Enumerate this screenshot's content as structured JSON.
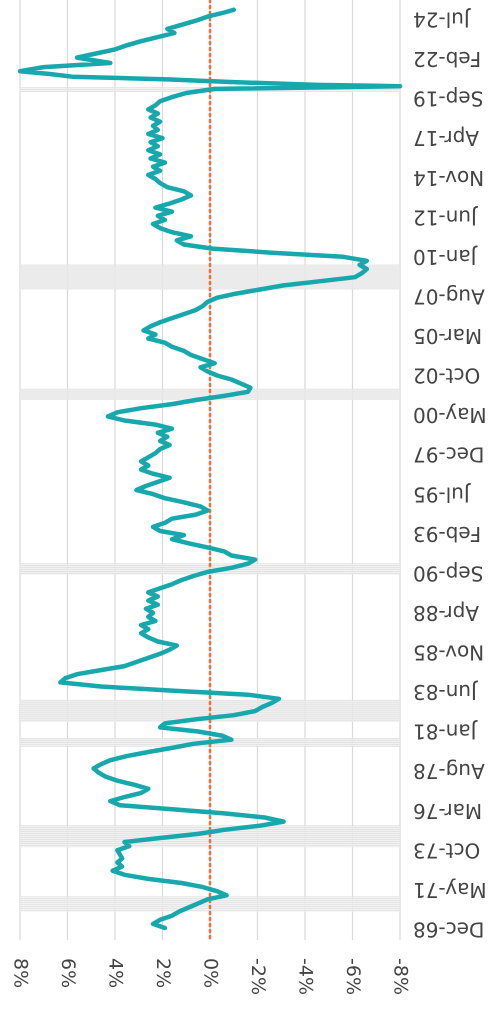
{
  "chart_data": {
    "type": "line",
    "orientation": "rotated-90-clockwise",
    "title": "",
    "xlabel": "",
    "ylabel": "",
    "x_tick_labels": [
      "Dec-68",
      "May-71",
      "Oct-73",
      "Mar-76",
      "Aug-78",
      "Jan-81",
      "Jun-83",
      "Nov-85",
      "Apr-88",
      "Sep-90",
      "Feb-93",
      "Jul-95",
      "Dec-97",
      "May-00",
      "Oct-02",
      "Mar-05",
      "Aug-07",
      "Jan-10",
      "Jun-12",
      "Nov-14",
      "Apr-17",
      "Sep-19",
      "Feb-22",
      "Jul-24"
    ],
    "y_tick_labels": [
      "8%",
      "6%",
      "4%",
      "2%",
      "0%",
      "-2%",
      "-4%",
      "-6%",
      "-8%"
    ],
    "ylim": [
      -8,
      8
    ],
    "grid": true,
    "reference_line": {
      "value": 0,
      "style": "dotted",
      "color": "#e8743b"
    },
    "series": [
      {
        "color": "#17a8ad",
        "points": [
          [
            "1968-12",
            1.9
          ],
          [
            "1969-03",
            2.4
          ],
          [
            "1969-06",
            2.1
          ],
          [
            "1969-09",
            1.6
          ],
          [
            "1969-12",
            1.3
          ],
          [
            "1970-03",
            0.9
          ],
          [
            "1970-06",
            0.5
          ],
          [
            "1970-09",
            0.1
          ],
          [
            "1970-12",
            -0.7
          ],
          [
            "1971-03",
            -0.3
          ],
          [
            "1971-06",
            0.3
          ],
          [
            "1971-09",
            1.2
          ],
          [
            "1971-12",
            2.6
          ],
          [
            "1972-03",
            3.6
          ],
          [
            "1972-06",
            4.1
          ],
          [
            "1972-09",
            3.7
          ],
          [
            "1972-12",
            3.9
          ],
          [
            "1973-03",
            3.7
          ],
          [
            "1973-06",
            3.8
          ],
          [
            "1973-09",
            3.9
          ],
          [
            "1973-12",
            3.4
          ],
          [
            "1974-03",
            3.6
          ],
          [
            "1974-06",
            2.1
          ],
          [
            "1974-09",
            0.5
          ],
          [
            "1974-12",
            -0.6
          ],
          [
            "1975-03",
            -2.1
          ],
          [
            "1975-06",
            -3.1
          ],
          [
            "1975-09",
            -2.3
          ],
          [
            "1975-12",
            -0.6
          ],
          [
            "1976-03",
            1.6
          ],
          [
            "1976-06",
            3.8
          ],
          [
            "1976-09",
            4.2
          ],
          [
            "1976-12",
            3.6
          ],
          [
            "1977-03",
            2.9
          ],
          [
            "1977-06",
            2.6
          ],
          [
            "1977-09",
            3.2
          ],
          [
            "1977-12",
            3.9
          ],
          [
            "1978-03",
            4.4
          ],
          [
            "1978-06",
            4.7
          ],
          [
            "1978-09",
            4.9
          ],
          [
            "1978-12",
            4.6
          ],
          [
            "1979-03",
            4.2
          ],
          [
            "1979-06",
            3.5
          ],
          [
            "1979-09",
            2.6
          ],
          [
            "1979-12",
            1.6
          ],
          [
            "1980-03",
            0.7
          ],
          [
            "1980-06",
            -0.9
          ],
          [
            "1980-09",
            -0.5
          ],
          [
            "1980-12",
            0.5
          ],
          [
            "1981-03",
            2.1
          ],
          [
            "1981-06",
            1.9
          ],
          [
            "1981-09",
            0.6
          ],
          [
            "1981-12",
            -1.0
          ],
          [
            "1982-03",
            -1.9
          ],
          [
            "1982-06",
            -2.2
          ],
          [
            "1982-09",
            -2.6
          ],
          [
            "1982-12",
            -2.9
          ],
          [
            "1983-03",
            -1.6
          ],
          [
            "1983-06",
            1.6
          ],
          [
            "1983-09",
            4.6
          ],
          [
            "1983-12",
            6.3
          ],
          [
            "1984-03",
            6.1
          ],
          [
            "1984-06",
            5.6
          ],
          [
            "1984-09",
            4.6
          ],
          [
            "1984-12",
            3.6
          ],
          [
            "1985-03",
            3.1
          ],
          [
            "1985-06",
            2.6
          ],
          [
            "1985-09",
            2.1
          ],
          [
            "1985-12",
            1.7
          ],
          [
            "1986-03",
            1.4
          ],
          [
            "1986-06",
            2.2
          ],
          [
            "1986-09",
            2.6
          ],
          [
            "1986-12",
            2.9
          ],
          [
            "1987-03",
            2.6
          ],
          [
            "1987-06",
            2.9
          ],
          [
            "1987-09",
            2.3
          ],
          [
            "1987-12",
            2.6
          ],
          [
            "1988-03",
            2.4
          ],
          [
            "1988-06",
            2.7
          ],
          [
            "1988-09",
            2.2
          ],
          [
            "1988-12",
            2.6
          ],
          [
            "1989-03",
            2.2
          ],
          [
            "1989-06",
            2.6
          ],
          [
            "1989-09",
            2.1
          ],
          [
            "1989-12",
            1.6
          ],
          [
            "1990-03",
            1.2
          ],
          [
            "1990-06",
            0.7
          ],
          [
            "1990-09",
            0.1
          ],
          [
            "1990-12",
            -0.9
          ],
          [
            "1991-03",
            -1.6
          ],
          [
            "1991-06",
            -1.9
          ],
          [
            "1991-09",
            -0.9
          ],
          [
            "1991-12",
            -0.6
          ],
          [
            "1992-03",
            0.1
          ],
          [
            "1992-06",
            0.9
          ],
          [
            "1992-09",
            1.6
          ],
          [
            "1992-12",
            1.1
          ],
          [
            "1993-03",
            2.1
          ],
          [
            "1993-06",
            2.4
          ],
          [
            "1993-09",
            1.9
          ],
          [
            "1993-12",
            1.6
          ],
          [
            "1994-03",
            0.6
          ],
          [
            "1994-06",
            0.1
          ],
          [
            "1994-09",
            0.4
          ],
          [
            "1994-12",
            1.1
          ],
          [
            "1995-03",
            1.9
          ],
          [
            "1995-06",
            2.4
          ],
          [
            "1995-09",
            3.1
          ],
          [
            "1995-12",
            2.7
          ],
          [
            "1996-03",
            2.2
          ],
          [
            "1996-06",
            1.7
          ],
          [
            "1996-09",
            2.4
          ],
          [
            "1996-12",
            2.9
          ],
          [
            "1997-03",
            2.6
          ],
          [
            "1997-06",
            2.9
          ],
          [
            "1997-09",
            2.6
          ],
          [
            "1997-12",
            2.3
          ],
          [
            "1998-03",
            2.1
          ],
          [
            "1998-06",
            1.7
          ],
          [
            "1998-09",
            2.1
          ],
          [
            "1998-12",
            1.8
          ],
          [
            "1999-03",
            2.2
          ],
          [
            "1999-06",
            1.6
          ],
          [
            "1999-09",
            2.3
          ],
          [
            "1999-12",
            3.6
          ],
          [
            "2000-03",
            4.3
          ],
          [
            "2000-06",
            3.9
          ],
          [
            "2000-09",
            2.9
          ],
          [
            "2000-12",
            1.6
          ],
          [
            "2001-03",
            0.6
          ],
          [
            "2001-06",
            -0.6
          ],
          [
            "2001-09",
            -1.6
          ],
          [
            "2001-12",
            -1.7
          ],
          [
            "2002-03",
            -1.3
          ],
          [
            "2002-06",
            -0.9
          ],
          [
            "2002-09",
            -0.3
          ],
          [
            "2002-12",
            0.1
          ],
          [
            "2003-03",
            0.4
          ],
          [
            "2003-06",
            -0.2
          ],
          [
            "2003-09",
            0.3
          ],
          [
            "2003-12",
            0.8
          ],
          [
            "2004-03",
            1.1
          ],
          [
            "2004-06",
            1.6
          ],
          [
            "2004-09",
            1.9
          ],
          [
            "2004-12",
            2.6
          ],
          [
            "2005-03",
            2.3
          ],
          [
            "2005-06",
            2.8
          ],
          [
            "2005-09",
            2.5
          ],
          [
            "2005-12",
            2.1
          ],
          [
            "2006-03",
            1.6
          ],
          [
            "2006-06",
            1.1
          ],
          [
            "2006-09",
            0.6
          ],
          [
            "2006-12",
            0.3
          ],
          [
            "2007-03",
            0.1
          ],
          [
            "2007-06",
            -0.3
          ],
          [
            "2007-09",
            -1.1
          ],
          [
            "2007-12",
            -2.1
          ],
          [
            "2008-03",
            -3.1
          ],
          [
            "2008-06",
            -4.6
          ],
          [
            "2008-09",
            -6.1
          ],
          [
            "2008-12",
            -6.4
          ],
          [
            "2009-03",
            -6.6
          ],
          [
            "2009-06",
            -6.3
          ],
          [
            "2009-09",
            -6.6
          ],
          [
            "2009-12",
            -5.6
          ],
          [
            "2010-03",
            -2.6
          ],
          [
            "2010-06",
            -0.1
          ],
          [
            "2010-09",
            1.1
          ],
          [
            "2010-12",
            1.4
          ],
          [
            "2011-03",
            0.8
          ],
          [
            "2011-06",
            1.6
          ],
          [
            "2011-09",
            2.1
          ],
          [
            "2011-12",
            2.4
          ],
          [
            "2012-03",
            1.9
          ],
          [
            "2012-06",
            2.2
          ],
          [
            "2012-09",
            1.6
          ],
          [
            "2012-12",
            2.3
          ],
          [
            "2013-03",
            1.7
          ],
          [
            "2013-06",
            1.2
          ],
          [
            "2013-09",
            0.8
          ],
          [
            "2013-12",
            1.1
          ],
          [
            "2014-03",
            1.8
          ],
          [
            "2014-06",
            2.1
          ],
          [
            "2014-09",
            2.3
          ],
          [
            "2014-12",
            2.6
          ],
          [
            "2015-03",
            2.1
          ],
          [
            "2015-06",
            2.4
          ],
          [
            "2015-09",
            1.9
          ],
          [
            "2015-12",
            2.5
          ],
          [
            "2016-03",
            2.1
          ],
          [
            "2016-06",
            2.6
          ],
          [
            "2016-09",
            2.2
          ],
          [
            "2016-12",
            2.5
          ],
          [
            "2017-03",
            2.0
          ],
          [
            "2017-06",
            2.6
          ],
          [
            "2017-09",
            2.2
          ],
          [
            "2017-12",
            2.4
          ],
          [
            "2018-03",
            2.1
          ],
          [
            "2018-06",
            2.5
          ],
          [
            "2018-09",
            2.2
          ],
          [
            "2018-12",
            2.6
          ],
          [
            "2019-03",
            2.3
          ],
          [
            "2019-06",
            2.1
          ],
          [
            "2019-09",
            1.6
          ],
          [
            "2019-12",
            1.0
          ],
          [
            "2020-03",
            -0.2
          ],
          [
            "2020-04",
            -4.0
          ],
          [
            "2020-05",
            -8.0
          ],
          [
            "2020-06",
            -4.5
          ],
          [
            "2020-08",
            -1.0
          ],
          [
            "2020-10",
            1.8
          ],
          [
            "2020-11",
            3.8
          ],
          [
            "2020-12",
            5.8
          ],
          [
            "2021-02",
            6.8
          ],
          [
            "2021-04",
            8.0
          ],
          [
            "2021-07",
            7.0
          ],
          [
            "2021-10",
            4.2
          ],
          [
            "2022-02",
            5.6
          ],
          [
            "2022-05",
            4.8
          ],
          [
            "2022-08",
            4.0
          ],
          [
            "2022-11",
            3.5
          ],
          [
            "2023-02",
            2.9
          ],
          [
            "2023-05",
            2.2
          ],
          [
            "2023-08",
            1.5
          ],
          [
            "2023-11",
            1.8
          ],
          [
            "2024-02",
            1.2
          ],
          [
            "2024-05",
            0.6
          ],
          [
            "2024-08",
            0.1
          ],
          [
            "2024-11",
            -0.6
          ],
          [
            "2025-01",
            -1.0
          ]
        ]
      }
    ],
    "recessions": [
      [
        "1969-12",
        "1970-11"
      ],
      [
        "1973-11",
        "1975-03"
      ],
      [
        "1980-01",
        "1980-07"
      ],
      [
        "1981-07",
        "1982-11"
      ],
      [
        "1990-07",
        "1991-03"
      ],
      [
        "2001-03",
        "2001-11"
      ],
      [
        "2007-12",
        "2009-06"
      ],
      [
        "2020-02",
        "2020-04"
      ]
    ]
  }
}
